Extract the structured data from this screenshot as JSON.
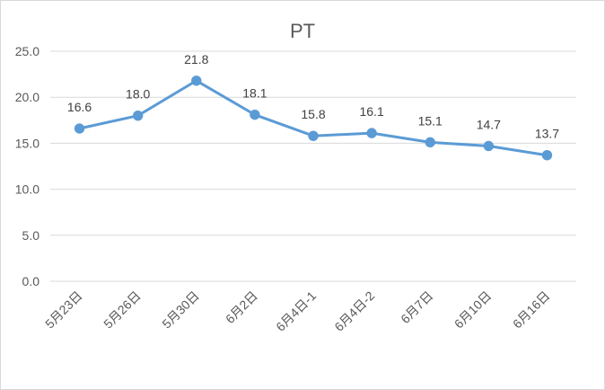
{
  "chart_data": {
    "type": "line",
    "title": "PT",
    "categories": [
      "5月23日",
      "5月26日",
      "5月30日",
      "6月2日",
      "6月4日-1",
      "6月4日-2",
      "6月7日",
      "6月10日",
      "6月16日"
    ],
    "series": [
      {
        "values": [
          16.6,
          18.0,
          21.8,
          18.1,
          15.8,
          16.1,
          15.1,
          14.7,
          13.7
        ]
      }
    ],
    "data_labels": [
      "16.6",
      "18.0",
      "21.8",
      "18.1",
      "15.8",
      "16.1",
      "15.1",
      "14.7",
      "13.7"
    ],
    "y_ticks": [
      "0.0",
      "5.0",
      "10.0",
      "15.0",
      "20.0",
      "25.0"
    ],
    "ylim": [
      0,
      25
    ],
    "grid": true,
    "legend": "none",
    "colors": {
      "line": "#5b9bd5",
      "grid": "#d9d9d9",
      "text": "#595959"
    }
  }
}
